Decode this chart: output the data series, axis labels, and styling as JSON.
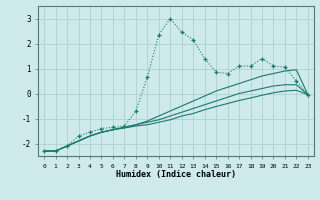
{
  "xlabel": "Humidex (Indice chaleur)",
  "background_color": "#ceeaea",
  "line_color": "#1a7a6e",
  "xlim": [
    -0.5,
    23.5
  ],
  "ylim": [
    -2.5,
    3.5
  ],
  "x_ticks": [
    0,
    1,
    2,
    3,
    4,
    5,
    6,
    7,
    8,
    9,
    10,
    11,
    12,
    13,
    14,
    15,
    16,
    17,
    18,
    19,
    20,
    21,
    22,
    23
  ],
  "y_ticks": [
    -2,
    -1,
    0,
    1,
    2,
    3
  ],
  "line1_x": [
    0,
    1,
    2,
    3,
    4,
    5,
    6,
    7,
    8,
    9,
    10,
    11,
    12,
    13,
    14,
    15,
    16,
    17,
    18,
    19,
    20,
    21,
    22,
    23
  ],
  "line1_y": [
    -2.3,
    -2.3,
    -2.1,
    -1.7,
    -1.55,
    -1.4,
    -1.35,
    -1.3,
    -0.7,
    0.65,
    2.35,
    3.0,
    2.45,
    2.15,
    1.4,
    0.85,
    0.8,
    1.1,
    1.1,
    1.4,
    1.1,
    1.05,
    0.5,
    -0.05
  ],
  "line2_x": [
    0,
    1,
    3,
    4,
    5,
    6,
    7,
    8,
    9,
    10,
    11,
    12,
    13,
    14,
    15,
    16,
    17,
    18,
    19,
    20,
    21,
    22,
    23
  ],
  "line2_y": [
    -2.3,
    -2.3,
    -1.9,
    -1.7,
    -1.55,
    -1.45,
    -1.35,
    -1.25,
    -1.1,
    -0.9,
    -0.7,
    -0.5,
    -0.3,
    -0.1,
    0.1,
    0.25,
    0.4,
    0.55,
    0.7,
    0.8,
    0.9,
    0.95,
    -0.05
  ],
  "line3_x": [
    0,
    1,
    3,
    4,
    5,
    6,
    7,
    8,
    9,
    10,
    11,
    12,
    13,
    14,
    15,
    16,
    17,
    18,
    19,
    20,
    21,
    22,
    23
  ],
  "line3_y": [
    -2.3,
    -2.3,
    -1.9,
    -1.7,
    -1.55,
    -1.45,
    -1.35,
    -1.25,
    -1.15,
    -1.05,
    -0.9,
    -0.75,
    -0.6,
    -0.45,
    -0.3,
    -0.15,
    0.0,
    0.1,
    0.2,
    0.3,
    0.35,
    0.35,
    -0.05
  ],
  "line4_x": [
    0,
    1,
    3,
    4,
    5,
    6,
    7,
    8,
    9,
    10,
    11,
    12,
    13,
    14,
    15,
    16,
    17,
    18,
    19,
    20,
    21,
    22,
    23
  ],
  "line4_y": [
    -2.3,
    -2.3,
    -1.9,
    -1.7,
    -1.55,
    -1.45,
    -1.38,
    -1.3,
    -1.25,
    -1.15,
    -1.05,
    -0.9,
    -0.8,
    -0.65,
    -0.52,
    -0.4,
    -0.28,
    -0.18,
    -0.07,
    0.03,
    0.1,
    0.13,
    -0.05
  ]
}
